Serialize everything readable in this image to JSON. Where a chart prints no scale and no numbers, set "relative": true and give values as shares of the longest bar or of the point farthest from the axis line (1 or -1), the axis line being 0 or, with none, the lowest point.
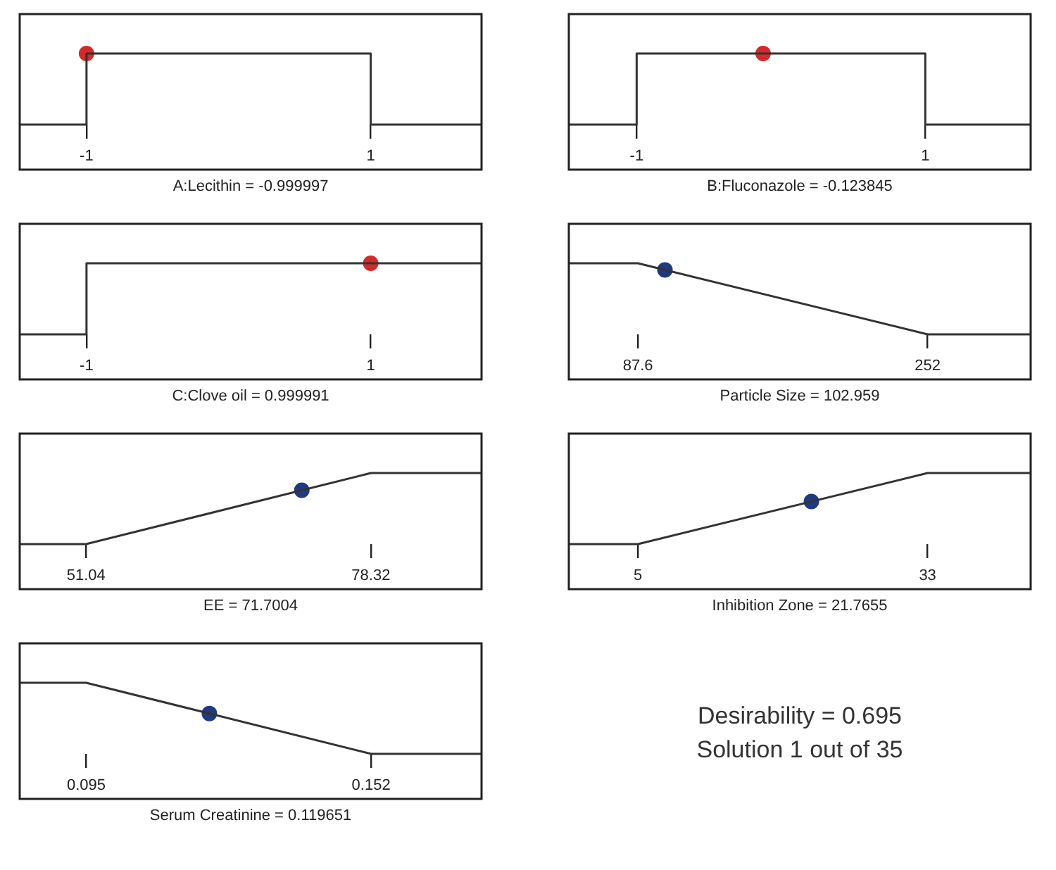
{
  "chart_data": [
    {
      "type": "line",
      "relative": true,
      "xlabel": "A:Lecithin = -0.999997",
      "xlim": [
        -1.47,
        1.78
      ],
      "xticks": [
        -1,
        1
      ],
      "series": [
        {
          "type": "line",
          "color": "#333333",
          "marker": "none",
          "x": [
            -1.47,
            -1,
            -1,
            1,
            1,
            1.78
          ],
          "values": [
            0,
            0,
            1,
            1,
            0,
            0
          ]
        },
        {
          "type": "scatter",
          "color": "#d42a2a",
          "marker": "circle",
          "x": [
            -0.999997
          ],
          "values": [
            1
          ]
        }
      ]
    },
    {
      "type": "line",
      "relative": true,
      "xlabel": "B:Fluconazole = -0.123845",
      "xlim": [
        -1.47,
        1.73
      ],
      "xticks": [
        -1,
        1
      ],
      "series": [
        {
          "type": "line",
          "color": "#333333",
          "marker": "none",
          "x": [
            -1.47,
            -1,
            -1,
            1,
            1,
            1.73
          ],
          "values": [
            0,
            0,
            1,
            1,
            0,
            0
          ]
        },
        {
          "type": "scatter",
          "color": "#d42a2a",
          "marker": "circle",
          "x": [
            -0.123845
          ],
          "values": [
            1
          ]
        }
      ]
    },
    {
      "type": "line",
      "relative": true,
      "xlabel": "C:Clove oil = 0.999991",
      "xlim": [
        -1.47,
        1.78
      ],
      "xticks": [
        -1,
        1
      ],
      "series": [
        {
          "type": "line",
          "color": "#333333",
          "marker": "none",
          "x": [
            -1.47,
            -1,
            -1,
            1,
            1.78
          ],
          "values": [
            0,
            0,
            1,
            1,
            1
          ]
        },
        {
          "type": "scatter",
          "color": "#d42a2a",
          "marker": "circle",
          "x": [
            0.999991
          ],
          "values": [
            1
          ]
        }
      ]
    },
    {
      "type": "line",
      "relative": true,
      "xlabel": "Particle Size = 102.959",
      "xlim": [
        48.4,
        310.5
      ],
      "xticks": [
        87.6,
        252
      ],
      "series": [
        {
          "type": "line",
          "color": "#333333",
          "marker": "none",
          "x": [
            48.4,
            87.6,
            252,
            310.5
          ],
          "values": [
            1,
            1,
            0,
            0
          ]
        },
        {
          "type": "scatter",
          "color": "#1f3a80",
          "marker": "circle",
          "x": [
            102.959
          ],
          "values": [
            0.907
          ]
        }
      ]
    },
    {
      "type": "line",
      "relative": true,
      "xlabel": "EE = 71.7004",
      "xlim": [
        44.69,
        88.91
      ],
      "xticks": [
        51.04,
        78.32
      ],
      "series": [
        {
          "type": "line",
          "color": "#333333",
          "marker": "none",
          "x": [
            44.69,
            51.04,
            78.32,
            88.91
          ],
          "values": [
            0,
            0,
            1,
            1
          ]
        },
        {
          "type": "scatter",
          "color": "#1f3a80",
          "marker": "circle",
          "x": [
            71.7004
          ],
          "values": [
            0.757
          ]
        }
      ]
    },
    {
      "type": "line",
      "relative": true,
      "xlabel": "Inhibition Zone = 21.7655",
      "xlim": [
        -1.68,
        42.96
      ],
      "xticks": [
        5,
        33
      ],
      "series": [
        {
          "type": "line",
          "color": "#333333",
          "marker": "none",
          "x": [
            -1.68,
            5,
            33,
            42.96
          ],
          "values": [
            0,
            0,
            1,
            1
          ]
        },
        {
          "type": "scatter",
          "color": "#1f3a80",
          "marker": "circle",
          "x": [
            21.7655
          ],
          "values": [
            0.599
          ]
        }
      ]
    },
    {
      "type": "line",
      "relative": true,
      "xlabel": "Serum Creatinine = 0.119651",
      "xlim": [
        0.0817,
        0.1741
      ],
      "xticks": [
        0.095,
        0.152
      ],
      "series": [
        {
          "type": "line",
          "color": "#333333",
          "marker": "none",
          "x": [
            0.0817,
            0.095,
            0.152,
            0.1741
          ],
          "values": [
            1,
            1,
            0,
            0
          ]
        },
        {
          "type": "scatter",
          "color": "#1f3a80",
          "marker": "circle",
          "x": [
            0.119651
          ],
          "values": [
            0.568
          ]
        }
      ]
    },
    {
      "type": "other",
      "annotations": [
        "Desirability = 0.695",
        "Solution 1 out of 35"
      ]
    }
  ]
}
